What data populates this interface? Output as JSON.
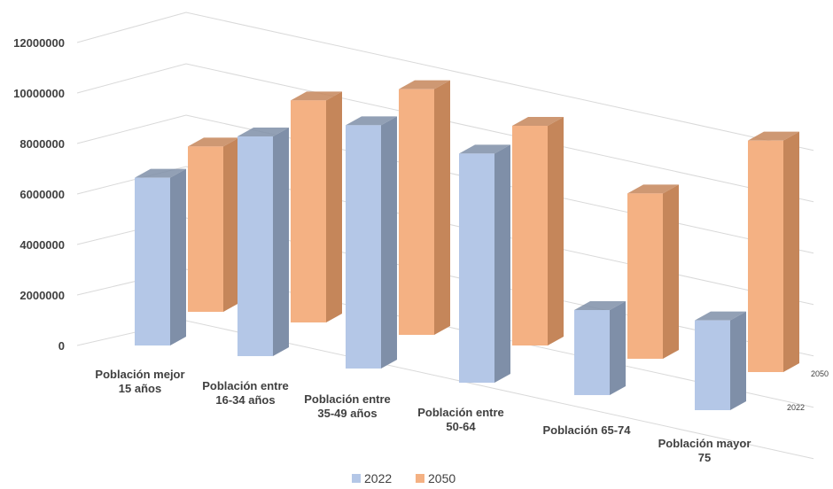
{
  "chart_data": {
    "type": "bar",
    "variant": "3d-column",
    "categories": [
      [
        "Población mejor",
        "15 años"
      ],
      [
        "Población entre",
        "16-34 años"
      ],
      [
        "Población entre",
        "35-49 años"
      ],
      [
        "Población entre",
        "50-64"
      ],
      [
        "Población 65-74"
      ],
      [
        "Población mayor",
        "75"
      ]
    ],
    "series": [
      {
        "name": "2022",
        "color": "#B4C7E7",
        "values": [
          7100000,
          9300000,
          10300000,
          9700000,
          3600000,
          3800000
        ]
      },
      {
        "name": "2050",
        "color": "#F4B183",
        "values": [
          7000000,
          9400000,
          10400000,
          9300000,
          7000000,
          9800000
        ]
      }
    ],
    "yticks": [
      "0",
      "2000000",
      "4000000",
      "6000000",
      "8000000",
      "10000000",
      "12000000"
    ],
    "ylim": [
      0,
      12000000
    ],
    "depth_labels": [
      "2050",
      "2022"
    ],
    "legend": {
      "position": "bottom",
      "entries": [
        "2022",
        "2050"
      ]
    },
    "grid": true
  }
}
